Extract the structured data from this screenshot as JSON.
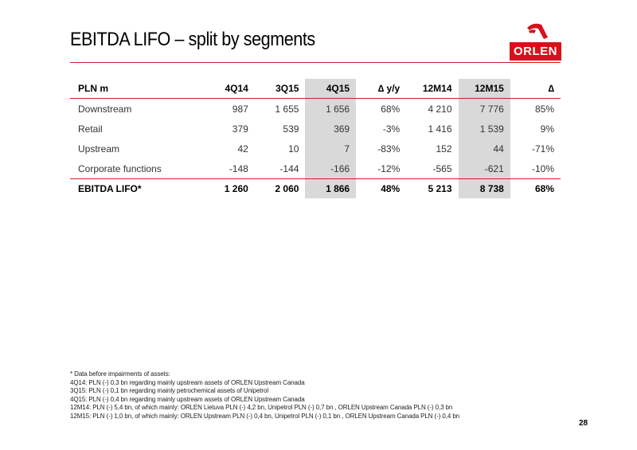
{
  "slide": {
    "title": "EBITDA LIFO – split by segments",
    "page_number": "28"
  },
  "logo": {
    "text": "ORLEN",
    "brand_color": "#d6111b"
  },
  "table": {
    "headers": [
      "PLN m",
      "4Q14",
      "3Q15",
      "4Q15",
      "∆ y/y",
      "12M14",
      "12M15",
      "∆"
    ],
    "rows": [
      {
        "label": "Downstream",
        "values": [
          "987",
          "1 655",
          "1 656",
          "68%",
          "4 210",
          "7 776",
          "85%"
        ]
      },
      {
        "label": "Retail",
        "values": [
          "379",
          "539",
          "369",
          "-3%",
          "1 416",
          "1 539",
          "9%"
        ]
      },
      {
        "label": "Upstream",
        "values": [
          "42",
          "10",
          "7",
          "-83%",
          "152",
          "44",
          "-71%"
        ]
      },
      {
        "label": "Corporate functions",
        "values": [
          "-148",
          "-144",
          "-166",
          "-12%",
          "-565",
          "-621",
          "-10%"
        ]
      }
    ],
    "total": {
      "label": "EBITDA LIFO*",
      "values": [
        "1 260",
        "2 060",
        "1 866",
        "48%",
        "5 213",
        "8 738",
        "68%"
      ]
    },
    "accent_color": "#cc1f1f",
    "shade_color": "#d9d9d9"
  },
  "footnotes": [
    "* Data before impairments of assets:",
    "4Q14: PLN (-) 0,3 bn regarding mainly upstream assets of ORLEN Upstream Canada",
    "3Q15: PLN (-) 0,1 bn regarding mainly petrochemical assets of Unipetrol",
    "4Q15: PLN (-) 0,4 bn regarding mainly upstream assets of ORLEN Upstream Canada",
    "12M14: PLN (-) 5,4 bn, of which mainly: ORLEN Lietuva PLN (-) 4,2 bn, Unipetrol PLN (-) 0,7 bn , ORLEN Upstream Canada PLN (-) 0,3 bn",
    "12M15: PLN (-) 1,0 bn, of which mainly: ORLEN Upstream PLN (-) 0,4 bn, Unipetrol PLN (-) 0,1 bn , ORLEN Upstream Canada PLN (-) 0,4 bn"
  ]
}
